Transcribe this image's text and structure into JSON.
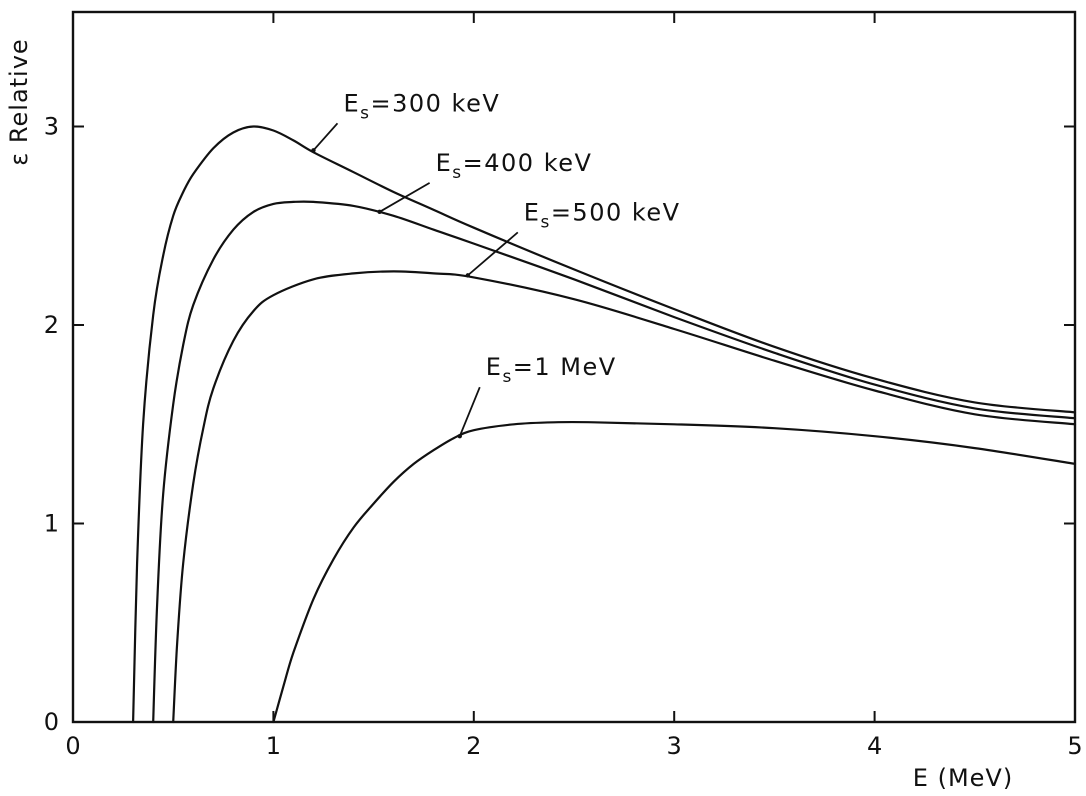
{
  "chart_data": {
    "type": "line",
    "xlabel": "E (MeV)",
    "ylabel": "ε Relative",
    "xlim": [
      0,
      5
    ],
    "ylim": [
      0,
      3.6
    ],
    "xticks": [
      0,
      1,
      2,
      3,
      4,
      5
    ],
    "yticks": [
      0,
      1,
      2,
      3
    ],
    "grid": false,
    "series": [
      {
        "name": "Es=300 keV",
        "label_main": "E",
        "label_sub": "s",
        "label_rest": "=300  keV",
        "points": [
          [
            0.3,
            0
          ],
          [
            0.32,
            0.8
          ],
          [
            0.35,
            1.5
          ],
          [
            0.4,
            2.05
          ],
          [
            0.45,
            2.35
          ],
          [
            0.5,
            2.55
          ],
          [
            0.55,
            2.67
          ],
          [
            0.6,
            2.76
          ],
          [
            0.7,
            2.89
          ],
          [
            0.8,
            2.97
          ],
          [
            0.9,
            3.0
          ],
          [
            1.0,
            2.98
          ],
          [
            1.1,
            2.93
          ],
          [
            1.2,
            2.87
          ],
          [
            1.4,
            2.77
          ],
          [
            1.6,
            2.67
          ],
          [
            1.8,
            2.58
          ],
          [
            2.0,
            2.49
          ],
          [
            2.5,
            2.28
          ],
          [
            3.0,
            2.08
          ],
          [
            3.5,
            1.89
          ],
          [
            4.0,
            1.73
          ],
          [
            4.5,
            1.61
          ],
          [
            5.0,
            1.56
          ]
        ],
        "annotation_point": [
          1.2,
          2.88
        ]
      },
      {
        "name": "Es=400 keV",
        "label_main": "E",
        "label_sub": "s",
        "label_rest": "=400  keV",
        "points": [
          [
            0.4,
            0
          ],
          [
            0.42,
            0.6
          ],
          [
            0.45,
            1.15
          ],
          [
            0.5,
            1.6
          ],
          [
            0.55,
            1.9
          ],
          [
            0.6,
            2.1
          ],
          [
            0.7,
            2.33
          ],
          [
            0.8,
            2.48
          ],
          [
            0.9,
            2.57
          ],
          [
            1.0,
            2.61
          ],
          [
            1.1,
            2.62
          ],
          [
            1.2,
            2.62
          ],
          [
            1.4,
            2.6
          ],
          [
            1.6,
            2.55
          ],
          [
            1.8,
            2.48
          ],
          [
            2.0,
            2.41
          ],
          [
            2.5,
            2.23
          ],
          [
            3.0,
            2.04
          ],
          [
            3.5,
            1.86
          ],
          [
            4.0,
            1.7
          ],
          [
            4.5,
            1.58
          ],
          [
            5.0,
            1.53
          ]
        ],
        "annotation_point": [
          1.53,
          2.57
        ]
      },
      {
        "name": "Es=500 keV",
        "label_main": "E",
        "label_sub": "s",
        "label_rest": "=500  keV",
        "points": [
          [
            0.5,
            0
          ],
          [
            0.52,
            0.4
          ],
          [
            0.55,
            0.8
          ],
          [
            0.6,
            1.2
          ],
          [
            0.65,
            1.48
          ],
          [
            0.7,
            1.68
          ],
          [
            0.8,
            1.92
          ],
          [
            0.9,
            2.07
          ],
          [
            1.0,
            2.15
          ],
          [
            1.2,
            2.23
          ],
          [
            1.4,
            2.26
          ],
          [
            1.6,
            2.27
          ],
          [
            1.8,
            2.26
          ],
          [
            2.0,
            2.24
          ],
          [
            2.5,
            2.13
          ],
          [
            3.0,
            1.98
          ],
          [
            3.5,
            1.82
          ],
          [
            4.0,
            1.67
          ],
          [
            4.5,
            1.55
          ],
          [
            5.0,
            1.5
          ]
        ],
        "annotation_point": [
          1.97,
          2.25
        ]
      },
      {
        "name": "Es=1 MeV",
        "label_main": "E",
        "label_sub": "s",
        "label_rest": "=1  MeV",
        "points": [
          [
            1.0,
            0
          ],
          [
            1.05,
            0.18
          ],
          [
            1.1,
            0.35
          ],
          [
            1.2,
            0.62
          ],
          [
            1.3,
            0.82
          ],
          [
            1.4,
            0.98
          ],
          [
            1.5,
            1.1
          ],
          [
            1.6,
            1.21
          ],
          [
            1.7,
            1.3
          ],
          [
            1.8,
            1.37
          ],
          [
            1.9,
            1.43
          ],
          [
            2.0,
            1.47
          ],
          [
            2.2,
            1.5
          ],
          [
            2.4,
            1.51
          ],
          [
            2.6,
            1.51
          ],
          [
            3.0,
            1.5
          ],
          [
            3.5,
            1.48
          ],
          [
            4.0,
            1.44
          ],
          [
            4.5,
            1.38
          ],
          [
            5.0,
            1.3
          ]
        ],
        "annotation_point": [
          1.93,
          1.44
        ]
      }
    ]
  }
}
